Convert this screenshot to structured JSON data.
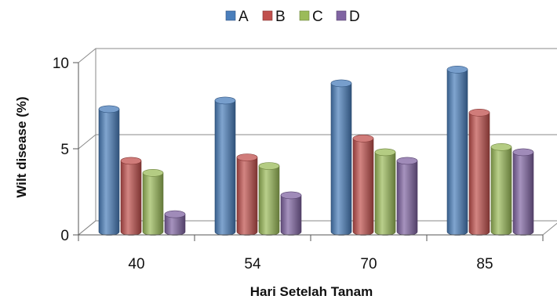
{
  "chart_data": {
    "type": "bar",
    "title": "",
    "xlabel": "Hari Setelah Tanam",
    "ylabel": "Wilt disease (%)",
    "categories": [
      "40",
      "54",
      "70",
      "85"
    ],
    "ylim": [
      0,
      10
    ],
    "yticks": [
      0,
      5,
      10
    ],
    "grid": true,
    "legend_position": "top",
    "series": [
      {
        "name": "A",
        "color": "#4a7ebb",
        "values": [
          7.3,
          7.8,
          8.8,
          9.6
        ]
      },
      {
        "name": "B",
        "color": "#c0504d",
        "values": [
          4.3,
          4.5,
          5.6,
          7.1
        ]
      },
      {
        "name": "C",
        "color": "#9bbb59",
        "values": [
          3.6,
          4.0,
          4.8,
          5.1
        ]
      },
      {
        "name": "D",
        "color": "#8064a2",
        "values": [
          1.2,
          2.3,
          4.3,
          4.8
        ]
      }
    ]
  }
}
